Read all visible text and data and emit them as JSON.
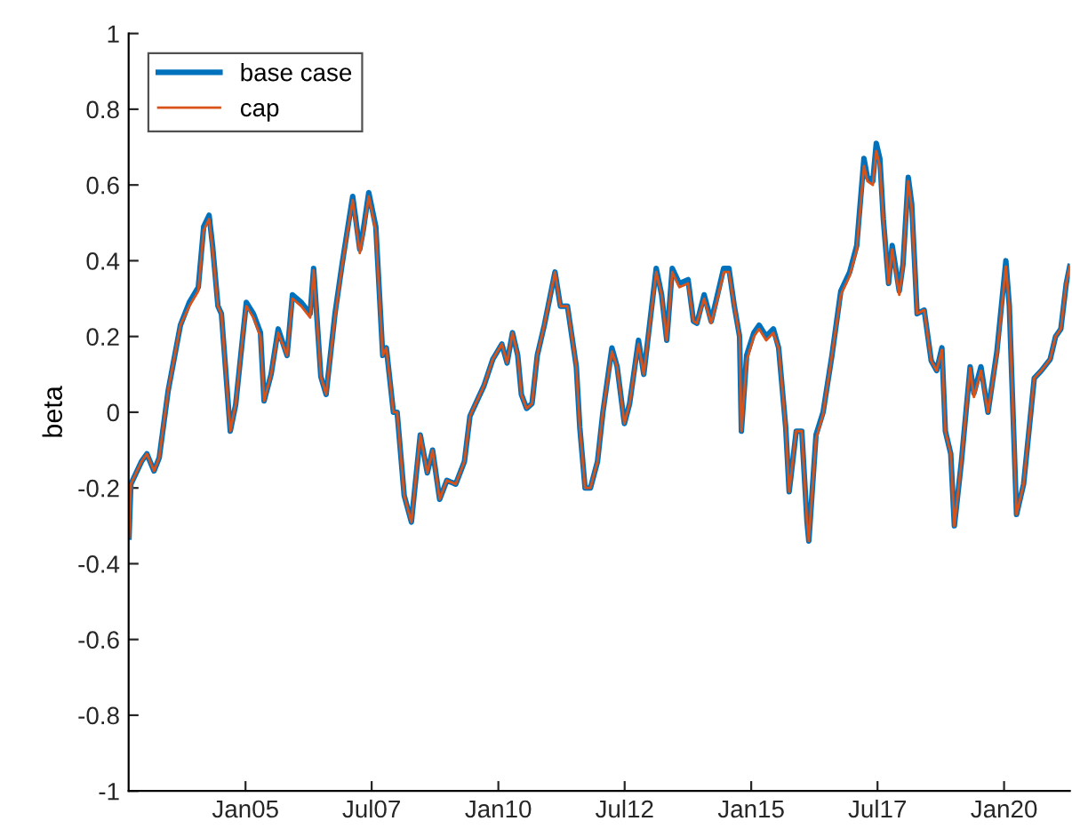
{
  "chart_data": {
    "type": "line",
    "ylabel": "beta",
    "x": [
      "2002-09-13",
      "2002-09-26",
      "2002-10-09",
      "2002-12-12",
      "2003-01-20",
      "2003-03-12",
      "2003-04-19",
      "2003-06-22",
      "2003-09-19",
      "2003-11-22",
      "2004-01-26",
      "2004-03-05",
      "2004-04-13",
      "2004-05-08",
      "2004-06-16",
      "2004-07-11",
      "2004-09-13",
      "2004-10-22",
      "2004-12-12",
      "2005-01-07",
      "2005-02-27",
      "2005-04-19",
      "2005-05-15",
      "2005-07-05",
      "2005-08-25",
      "2005-10-28",
      "2005-12-06",
      "2006-02-08",
      "2006-04-13",
      "2006-05-08",
      "2006-06-29",
      "2006-08-06",
      "2006-10-09",
      "2006-11-29",
      "2007-02-14",
      "2007-04-06",
      "2007-05-01",
      "2007-06-10",
      "2007-07-31",
      "2007-09-19",
      "2007-10-15",
      "2007-12-05",
      "2008-01-01",
      "2008-02-21",
      "2008-04-13",
      "2008-06-16",
      "2008-08-06",
      "2008-09-13",
      "2008-11-03",
      "2008-12-25",
      "2009-02-27",
      "2009-05-01",
      "2009-06-10",
      "2009-08-12",
      "2009-09-19",
      "2009-11-22",
      "2010-01-26",
      "2010-03-05",
      "2010-04-13",
      "2010-05-21",
      "2010-06-16",
      "2010-07-24",
      "2010-09-01",
      "2010-10-09",
      "2010-11-29",
      "2011-02-14",
      "2011-03-25",
      "2011-05-15",
      "2011-07-18",
      "2011-08-12",
      "2011-09-19",
      "2011-10-28",
      "2011-12-18",
      "2012-01-26",
      "2012-03-31",
      "2012-05-08",
      "2012-06-29",
      "2012-08-06",
      "2012-10-09",
      "2012-11-16",
      "2013-02-14",
      "2013-03-25",
      "2013-05-01",
      "2013-06-10",
      "2013-07-31",
      "2013-10-02",
      "2013-11-10",
      "2013-12-05",
      "2014-01-26",
      "2014-03-18",
      "2014-04-26",
      "2014-06-16",
      "2014-07-24",
      "2014-09-01",
      "2014-10-09",
      "2014-10-22",
      "2014-11-29",
      "2015-01-20",
      "2015-02-27",
      "2015-04-19",
      "2015-06-10",
      "2015-07-18",
      "2015-09-07",
      "2015-10-02",
      "2015-11-22",
      "2016-01-01",
      "2016-02-08",
      "2016-02-21",
      "2016-04-13",
      "2016-06-03",
      "2016-08-06",
      "2016-10-09",
      "2016-12-12",
      "2017-02-01",
      "2017-03-25",
      "2017-04-19",
      "2017-05-28",
      "2017-06-22",
      "2017-07-18",
      "2017-08-12",
      "2017-09-19",
      "2017-10-15",
      "2017-12-05",
      "2018-01-01",
      "2018-02-08",
      "2018-03-05",
      "2018-04-13",
      "2018-06-03",
      "2018-07-24",
      "2018-09-01",
      "2018-10-09",
      "2018-11-03",
      "2018-12-12",
      "2019-01-07",
      "2019-02-27",
      "2019-05-01",
      "2019-05-28",
      "2019-07-18",
      "2019-09-07",
      "2019-11-10",
      "2020-01-14",
      "2020-02-08",
      "2020-03-31",
      "2020-05-21",
      "2020-08-06",
      "2020-09-26",
      "2020-11-29",
      "2021-01-07",
      "2021-02-14",
      "2021-03-25",
      "2021-04-19"
    ],
    "series": [
      {
        "name": "base case",
        "color": "#0072bd",
        "values": [
          -0.33,
          -0.19,
          -0.18,
          -0.13,
          -0.11,
          -0.155,
          -0.12,
          0.056,
          0.23,
          0.29,
          0.33,
          0.49,
          0.52,
          0.44,
          0.28,
          0.26,
          -0.05,
          0.02,
          0.2,
          0.29,
          0.26,
          0.21,
          0.03,
          0.1,
          0.22,
          0.15,
          0.31,
          0.29,
          0.26,
          0.38,
          0.094,
          0.047,
          0.26,
          0.39,
          0.57,
          0.43,
          0.48,
          0.58,
          0.49,
          0.15,
          0.17,
          0.0,
          0.0,
          -0.22,
          -0.29,
          -0.06,
          -0.16,
          -0.1,
          -0.23,
          -0.18,
          -0.19,
          -0.13,
          -0.01,
          0.04,
          0.07,
          0.14,
          0.18,
          0.13,
          0.21,
          0.15,
          0.047,
          0.01,
          0.023,
          0.15,
          0.23,
          0.37,
          0.28,
          0.28,
          0.12,
          -0.04,
          -0.2,
          -0.2,
          -0.13,
          0.0,
          0.17,
          0.12,
          -0.03,
          0.023,
          0.19,
          0.1,
          0.38,
          0.31,
          0.19,
          0.38,
          0.34,
          0.35,
          0.24,
          0.235,
          0.31,
          0.24,
          0.3,
          0.38,
          0.38,
          0.28,
          0.2,
          -0.05,
          0.15,
          0.21,
          0.23,
          0.2,
          0.22,
          0.17,
          -0.04,
          -0.21,
          -0.05,
          -0.05,
          -0.29,
          -0.34,
          -0.06,
          0.0,
          0.15,
          0.32,
          0.37,
          0.44,
          0.67,
          0.62,
          0.61,
          0.71,
          0.67,
          0.51,
          0.34,
          0.44,
          0.32,
          0.39,
          0.62,
          0.55,
          0.26,
          0.27,
          0.136,
          0.11,
          0.17,
          -0.05,
          -0.11,
          -0.3,
          -0.13,
          0.12,
          0.05,
          0.12,
          0.0,
          0.16,
          0.4,
          0.28,
          -0.27,
          -0.19,
          0.09,
          0.11,
          0.14,
          0.2,
          0.22,
          0.34,
          0.385
        ]
      },
      {
        "name": "cap",
        "color": "#d95319",
        "values": [
          -0.33,
          -0.19,
          -0.18,
          -0.13,
          -0.11,
          -0.155,
          -0.12,
          0.056,
          0.23,
          0.28,
          0.32,
          0.48,
          0.51,
          0.43,
          0.28,
          0.26,
          -0.05,
          0.02,
          0.2,
          0.28,
          0.25,
          0.2,
          0.03,
          0.1,
          0.21,
          0.15,
          0.3,
          0.28,
          0.25,
          0.375,
          0.094,
          0.047,
          0.25,
          0.385,
          0.56,
          0.42,
          0.47,
          0.57,
          0.48,
          0.15,
          0.17,
          0.0,
          0.0,
          -0.22,
          -0.29,
          -0.06,
          -0.16,
          -0.1,
          -0.23,
          -0.18,
          -0.19,
          -0.13,
          -0.01,
          0.04,
          0.07,
          0.14,
          0.18,
          0.13,
          0.21,
          0.15,
          0.047,
          0.01,
          0.023,
          0.15,
          0.23,
          0.37,
          0.28,
          0.28,
          0.12,
          -0.04,
          -0.2,
          -0.2,
          -0.13,
          0.0,
          0.16,
          0.12,
          -0.03,
          0.023,
          0.18,
          0.1,
          0.37,
          0.31,
          0.19,
          0.37,
          0.33,
          0.34,
          0.24,
          0.235,
          0.3,
          0.235,
          0.29,
          0.37,
          0.37,
          0.28,
          0.2,
          -0.05,
          0.136,
          0.2,
          0.22,
          0.19,
          0.21,
          0.17,
          -0.04,
          -0.21,
          -0.05,
          -0.05,
          -0.29,
          -0.34,
          -0.07,
          -0.005,
          0.15,
          0.31,
          0.36,
          0.43,
          0.65,
          0.61,
          0.6,
          0.69,
          0.65,
          0.51,
          0.34,
          0.43,
          0.31,
          0.385,
          0.61,
          0.54,
          0.26,
          0.27,
          0.136,
          0.11,
          0.165,
          -0.05,
          -0.11,
          -0.3,
          -0.13,
          0.117,
          0.04,
          0.11,
          0.0,
          0.15,
          0.385,
          0.28,
          -0.27,
          -0.19,
          0.09,
          0.11,
          0.14,
          0.2,
          0.22,
          0.34,
          0.385
        ]
      }
    ],
    "xlim": [
      "2002-09-10",
      "2021-04-20"
    ],
    "xticks": [
      {
        "value": "2005-01-01",
        "label": "Jan05"
      },
      {
        "value": "2007-07-01",
        "label": "Jul07"
      },
      {
        "value": "2010-01-01",
        "label": "Jan10"
      },
      {
        "value": "2012-07-01",
        "label": "Jul12"
      },
      {
        "value": "2015-01-01",
        "label": "Jan15"
      },
      {
        "value": "2017-07-01",
        "label": "Jul17"
      },
      {
        "value": "2020-01-01",
        "label": "Jan20"
      }
    ],
    "ylim": [
      -1,
      1
    ],
    "yticks": [
      -1,
      -0.8,
      -0.6,
      -0.4,
      -0.2,
      0,
      0.2,
      0.4,
      0.6,
      0.8,
      1
    ],
    "legend": "top left",
    "grid": false,
    "marker": "none",
    "line_style": "solid"
  }
}
